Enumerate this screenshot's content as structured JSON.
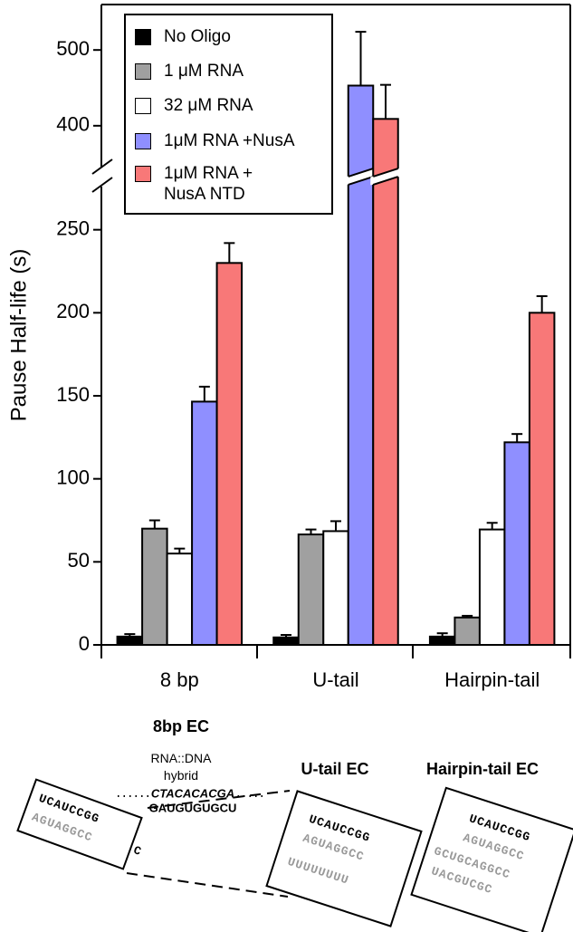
{
  "chart_data": {
    "type": "bar",
    "y_label": "Pause Half-life (s)",
    "categories": [
      "8 bp",
      "U-tail",
      "Hairpin-tail"
    ],
    "series": [
      {
        "name": "No Oligo",
        "color": "#000000",
        "values": [
          5,
          4.5,
          5
        ],
        "errors": [
          1.5,
          1.5,
          2
        ]
      },
      {
        "name": "1 μM RNA",
        "color": "#a0a0a0",
        "values": [
          70,
          66.5,
          16.5
        ],
        "errors": [
          5,
          3,
          1
        ]
      },
      {
        "name": "32 μM RNA",
        "color": "#ffffff",
        "values": [
          55,
          68.5,
          69.5
        ],
        "errors": [
          3,
          6,
          4
        ]
      },
      {
        "name": "1μM RNA +NusA",
        "color": "#8f8fff",
        "values": [
          146.5,
          453,
          122
        ],
        "errors": [
          9,
          71,
          5
        ]
      },
      {
        "name": "1μM RNA + NusA NTD",
        "color": "#f87878",
        "values": [
          230,
          409,
          200
        ],
        "errors": [
          12,
          45,
          10
        ]
      }
    ],
    "ylim": [
      0,
      560
    ],
    "ybreak": [
      276,
      346
    ],
    "yticks": [
      0,
      50,
      100,
      150,
      200,
      250,
      400,
      500
    ],
    "legend": "upper-left"
  },
  "diagram": {
    "hybrid_label": "RNA::DNA hybrid",
    "hybrid_dna": "CTACACACGA",
    "hybrid_rna": "GAUGUGUGCU",
    "panels": [
      {
        "title": "8bp EC",
        "strands": [
          "UCAUCCGG",
          "AGUAGGCC",
          "C"
        ]
      },
      {
        "title": "U-tail EC",
        "strands": [
          "UCAUCCGG",
          "AGUAGGCC",
          "UUUUUUUU"
        ]
      },
      {
        "title": "Hairpin-tail EC",
        "strands": [
          "UCAUCCGG",
          "AGUAGGCC",
          "GCUGCAGGCC",
          "UACGUCGC"
        ]
      }
    ]
  }
}
